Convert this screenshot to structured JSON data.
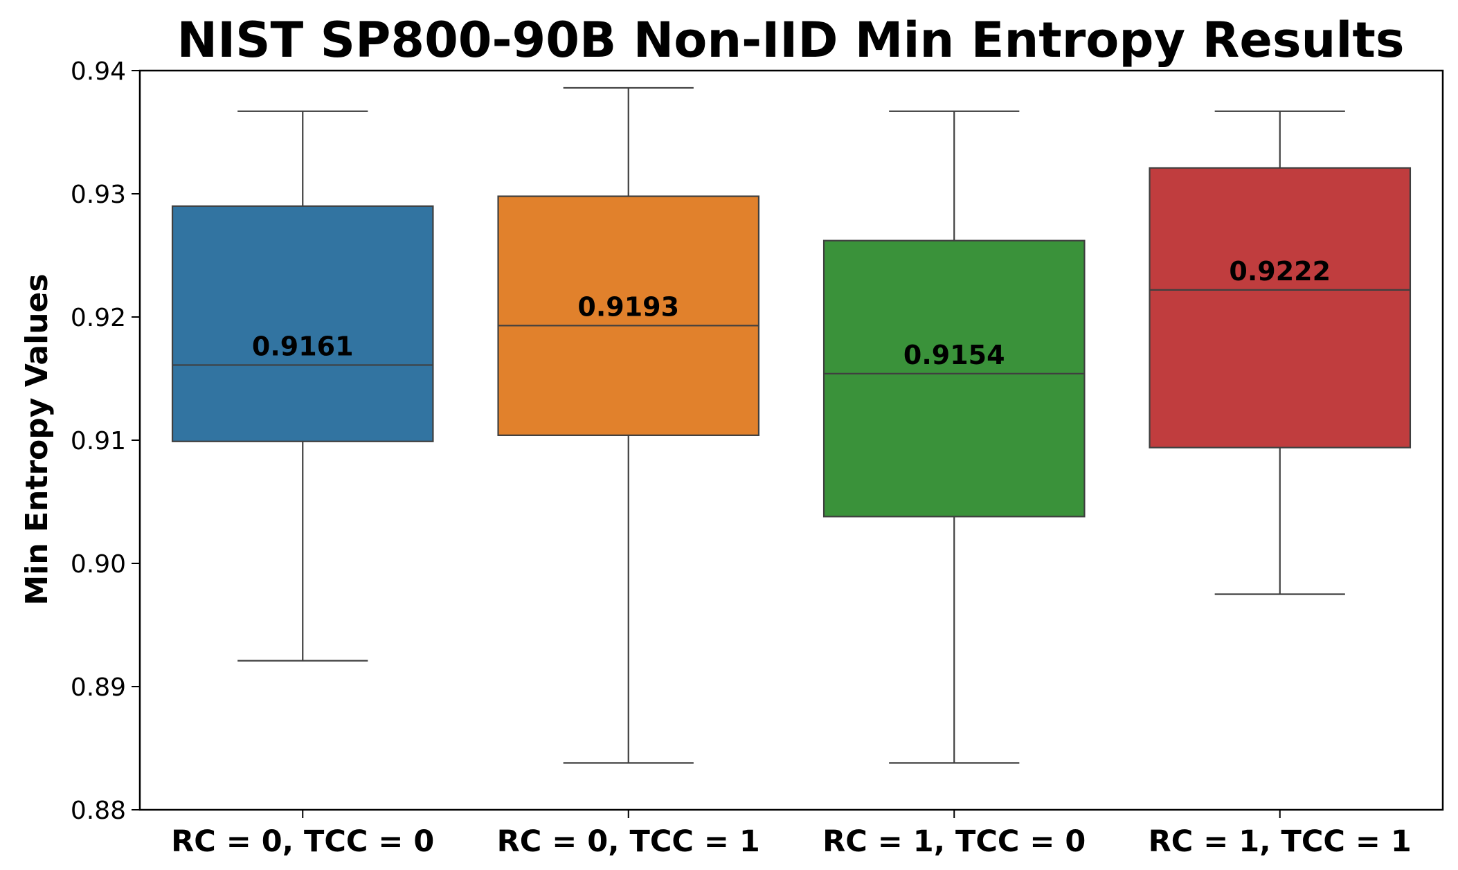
{
  "chart_data": {
    "type": "box",
    "title": "NIST SP800-90B Non-IID Min Entropy Results",
    "xlabel": "",
    "ylabel": "Min Entropy Values",
    "ylim": [
      0.88,
      0.94
    ],
    "yticks": [
      0.88,
      0.89,
      0.9,
      0.91,
      0.92,
      0.93,
      0.94
    ],
    "ytick_labels": [
      "0.88",
      "0.89",
      "0.90",
      "0.91",
      "0.92",
      "0.93",
      "0.94"
    ],
    "grid": false,
    "legend": "none",
    "categories": [
      "RC = 0, TCC = 0",
      "RC = 0, TCC = 1",
      "RC = 1, TCC = 0",
      "RC = 1, TCC = 1"
    ],
    "boxes": [
      {
        "category": "RC = 0, TCC = 0",
        "whisker_low": 0.8921,
        "q1": 0.9099,
        "median": 0.9161,
        "q3": 0.929,
        "whisker_high": 0.9367,
        "median_label": "0.9161",
        "color": "#3274a1"
      },
      {
        "category": "RC = 0, TCC = 1",
        "whisker_low": 0.8838,
        "q1": 0.9104,
        "median": 0.9193,
        "q3": 0.9298,
        "whisker_high": 0.9386,
        "median_label": "0.9193",
        "color": "#e1812c"
      },
      {
        "category": "RC = 1, TCC = 0",
        "whisker_low": 0.8838,
        "q1": 0.9038,
        "median": 0.9154,
        "q3": 0.9262,
        "whisker_high": 0.9367,
        "median_label": "0.9154",
        "color": "#3a923a"
      },
      {
        "category": "RC = 1, TCC = 1",
        "whisker_low": 0.8975,
        "q1": 0.9094,
        "median": 0.9222,
        "q3": 0.9321,
        "whisker_high": 0.9367,
        "median_label": "0.9222",
        "color": "#c03d3e"
      }
    ]
  }
}
